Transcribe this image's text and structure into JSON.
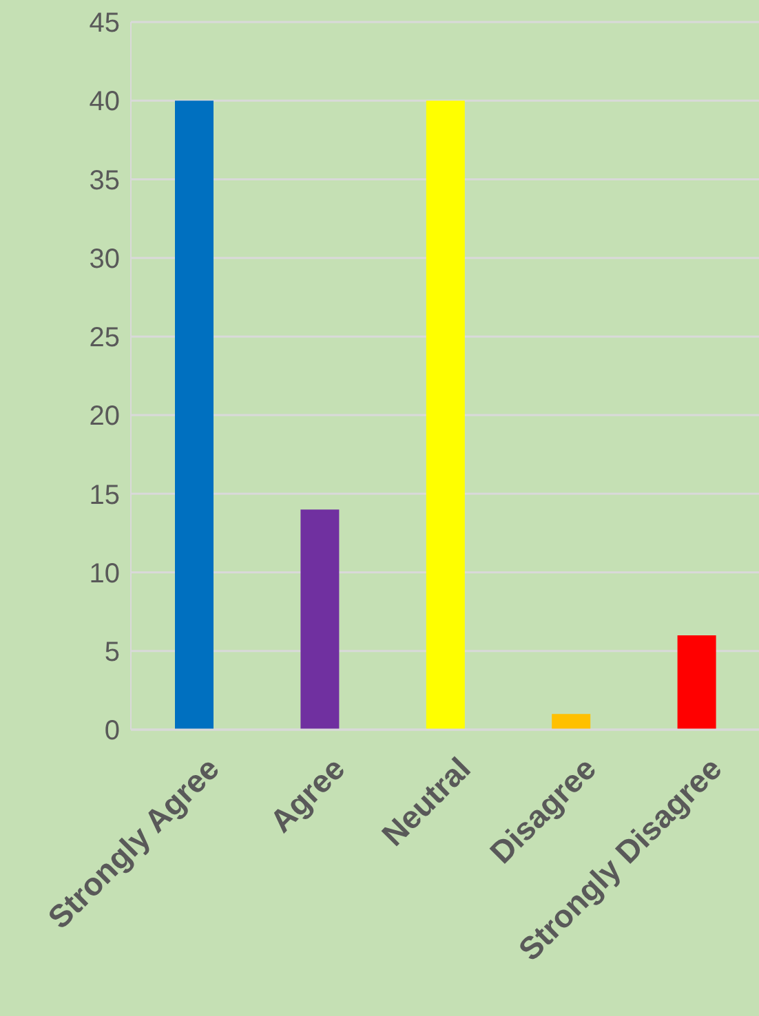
{
  "chart_data": {
    "type": "bar",
    "categories": [
      "Strongly Agree",
      "Agree",
      "Neutral",
      "Disagree",
      "Strongly Disagree"
    ],
    "values": [
      40,
      14,
      40,
      1,
      6
    ],
    "colors": [
      "#0070c0",
      "#7030a0",
      "#ffff00",
      "#ffc000",
      "#ff0000"
    ],
    "ylim": [
      0,
      45
    ],
    "yticks": [
      0,
      5,
      10,
      15,
      20,
      25,
      30,
      35,
      40,
      45
    ],
    "grid": "y"
  }
}
